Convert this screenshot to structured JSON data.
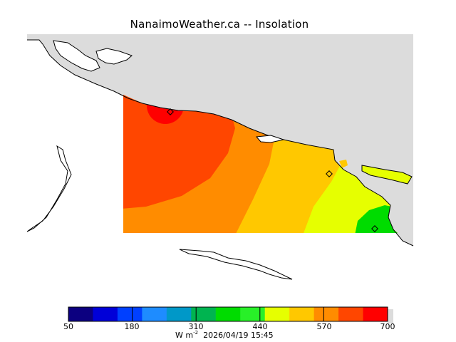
{
  "title": "NanaimoWeather.ca -- Insolation",
  "colorbar": {
    "colors": [
      "#0c0080",
      "#0000d8",
      "#0040ff",
      "#1e8cff",
      "#0098c8",
      "#00b450",
      "#00dc00",
      "#28f028",
      "#e6ff00",
      "#ffc800",
      "#ff8c00",
      "#ff4600",
      "#ff0000"
    ],
    "tick_labels": [
      "50",
      "180",
      "310",
      "440",
      "570",
      "700"
    ]
  },
  "units": {
    "base": "W m",
    "exponent": "-2",
    "timestamp": "2026/04/19 15:45"
  },
  "field_colors": {
    "land": "#dcdcdc",
    "red": "#ff0000",
    "red_orange": "#ff4600",
    "orange": "#ff8c00",
    "amber": "#ffc800",
    "yellow": "#e6ff00",
    "green": "#00dc00"
  }
}
